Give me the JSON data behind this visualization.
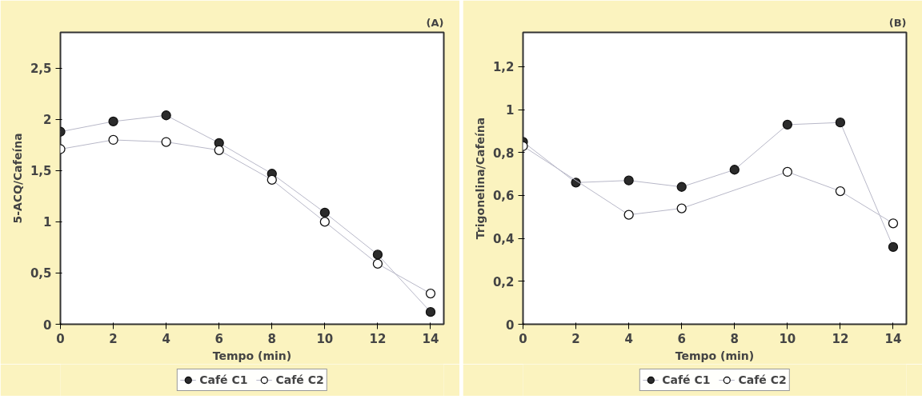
{
  "chart_data": [
    {
      "type": "line",
      "title": "(A)",
      "xlabel": "Tempo (min)",
      "ylabel": "5-ACQ/Cafeína",
      "x": [
        0,
        2,
        4,
        6,
        8,
        10,
        12,
        14
      ],
      "series": [
        {
          "name": "Café C1",
          "color": "#2b2b2b",
          "values": [
            1.88,
            1.98,
            2.04,
            1.77,
            1.47,
            1.09,
            0.68,
            0.12
          ]
        },
        {
          "name": "Café C2",
          "color": "#ffffff",
          "values": [
            1.71,
            1.8,
            1.78,
            1.7,
            1.41,
            1.0,
            0.59,
            0.3
          ]
        }
      ],
      "xlim": [
        0,
        14.5
      ],
      "ylim": [
        0,
        2.85
      ],
      "xticks": [
        0,
        2,
        4,
        6,
        8,
        10,
        12,
        14
      ],
      "yticks": [
        0,
        {
          "value": 0.5,
          "label": "0,5"
        },
        1,
        {
          "value": 1.5,
          "label": "1,5"
        },
        2,
        {
          "value": 2.5,
          "label": "2,5"
        }
      ],
      "grid": false,
      "legend": "bottom",
      "marker": "circle",
      "line_style": "solid"
    },
    {
      "type": "line",
      "title": "(B)",
      "xlabel": "Tempo (min)",
      "ylabel": "Trigonelina/Cafeína",
      "x": [
        0,
        2,
        4,
        6,
        8,
        10,
        12,
        14
      ],
      "series": [
        {
          "name": "Café C1",
          "color": "#2b2b2b",
          "values": [
            0.85,
            0.66,
            0.67,
            0.64,
            0.72,
            0.93,
            0.94,
            0.36
          ]
        },
        {
          "name": "Café C2",
          "color": "#ffffff",
          "values": [
            0.83,
            null,
            0.51,
            0.54,
            null,
            0.71,
            0.62,
            0.47
          ]
        }
      ],
      "xlim": [
        0,
        14.5
      ],
      "ylim": [
        0,
        1.36
      ],
      "xticks": [
        0,
        2,
        4,
        6,
        8,
        10,
        12,
        14
      ],
      "yticks": [
        0,
        {
          "value": 0.2,
          "label": "0,2"
        },
        {
          "value": 0.4,
          "label": "0,4"
        },
        {
          "value": 0.6,
          "label": "0,6"
        },
        {
          "value": 0.8,
          "label": "0,8"
        },
        1,
        {
          "value": 1.2,
          "label": "1,2"
        }
      ],
      "grid": false,
      "legend": "bottom",
      "marker": "circle",
      "line_style": "solid"
    }
  ]
}
